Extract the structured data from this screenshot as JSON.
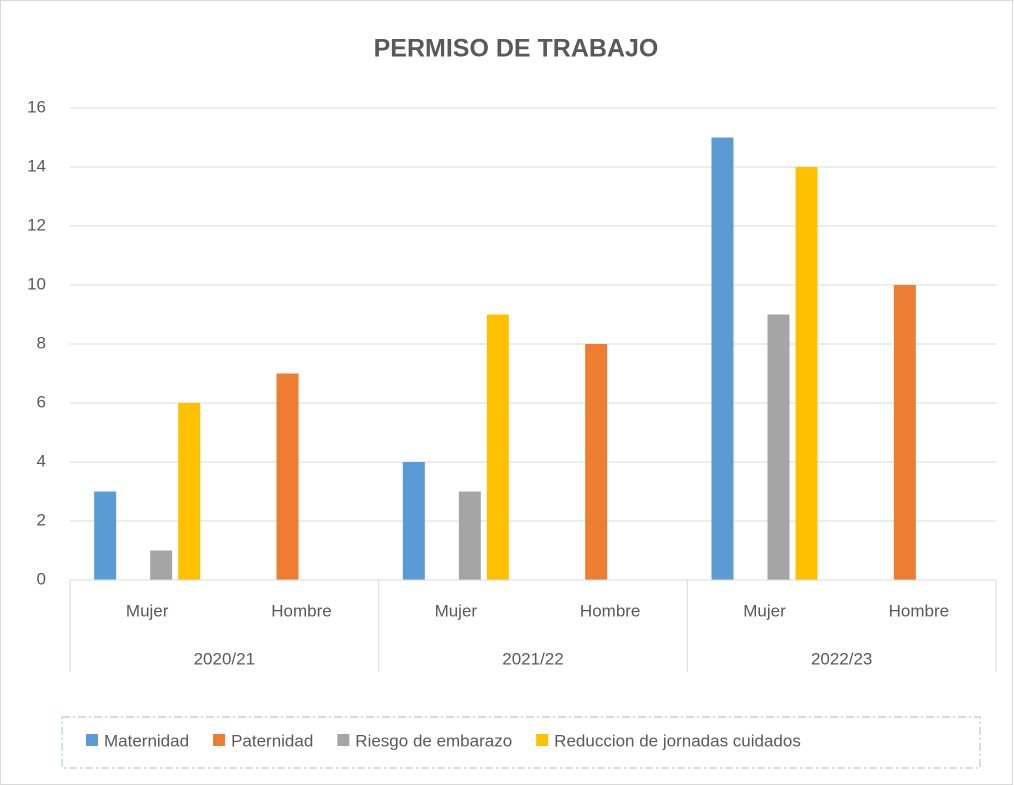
{
  "chart_data": {
    "type": "bar",
    "title": "PERMISO DE TRABAJO",
    "categories": [
      "Mujer",
      "Hombre",
      "Mujer",
      "Hombre",
      "Mujer",
      "Hombre"
    ],
    "groups": [
      "2020/21",
      "2021/22",
      "2022/23"
    ],
    "series": [
      {
        "name": "Maternidad",
        "color": "#5b9bd5",
        "values": [
          3,
          null,
          4,
          null,
          15,
          null
        ]
      },
      {
        "name": "Paternidad",
        "color": "#ed7d31",
        "values": [
          null,
          7,
          null,
          8,
          null,
          10
        ]
      },
      {
        "name": "Riesgo de embarazo",
        "color": "#a5a5a5",
        "values": [
          1,
          null,
          3,
          null,
          9,
          null
        ]
      },
      {
        "name": "Reduccion de jornadas cuidados",
        "color": "#ffc000",
        "values": [
          6,
          null,
          9,
          null,
          14,
          null
        ]
      }
    ],
    "ylim": [
      0,
      16
    ],
    "yticks": [
      0,
      2,
      4,
      6,
      8,
      10,
      12,
      14,
      16
    ],
    "grid": true,
    "legend": "bottom"
  }
}
